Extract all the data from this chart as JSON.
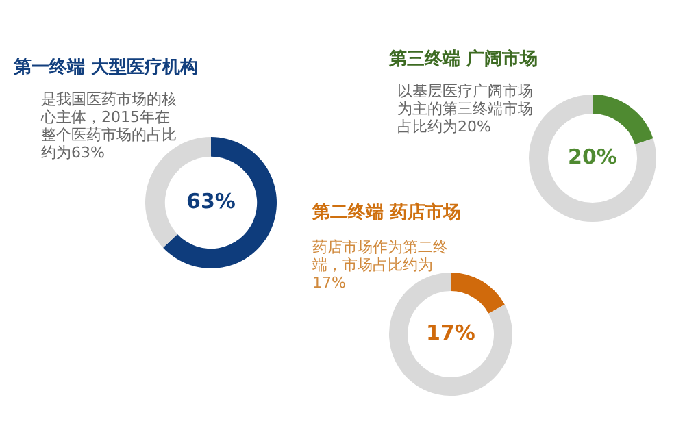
{
  "chart_data": [
    {
      "type": "donut",
      "title": "第一终端 大型医疗机构",
      "subtitle": "是我国医药市场的核心主体，2015年在整个医药市场的占比约为63%",
      "categories": [
        null,
        null
      ],
      "values": [
        63,
        37
      ],
      "colors": [
        "#0e3c7c",
        "#d9d9d9"
      ],
      "value_labels": [
        "63%",
        null
      ]
    },
    {
      "type": "donut",
      "title": "第三终端 广阔市场",
      "subtitle": "以基层医疗广阔市场为主的第三终端市场占比约为20%",
      "categories": [
        null,
        null
      ],
      "values": [
        20,
        80
      ],
      "colors": [
        "#4f8a31",
        "#d9d9d9"
      ],
      "value_labels": [
        "20%",
        null
      ]
    },
    {
      "type": "donut",
      "title": "第二终端 药店市场",
      "subtitle": "药店市场作为第二终端，市场占比约为17%",
      "categories": [
        null,
        null
      ],
      "values": [
        17,
        83
      ],
      "colors": [
        "#d06a0c",
        "#d9d9d9"
      ],
      "value_labels": [
        "17%",
        null
      ]
    }
  ]
}
